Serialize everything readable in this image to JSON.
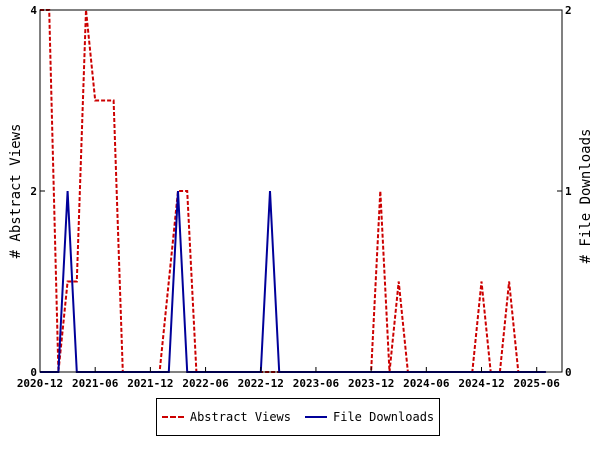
{
  "chart_data": {
    "type": "line",
    "x_ticks": [
      "2020-12",
      "2021-06",
      "2021-12",
      "2022-06",
      "2022-12",
      "2023-06",
      "2023-12",
      "2024-06",
      "2024-12",
      "2025-06"
    ],
    "xlim": [
      "2020-12",
      "2025-07"
    ],
    "ylabel_left": "# Abstract Views",
    "ylabel_right": "# File Downloads",
    "ylim_left": [
      0,
      4
    ],
    "ylim_right": [
      0,
      2
    ],
    "yticks_left": [
      "0",
      "2",
      "4"
    ],
    "yticks_right": [
      "0",
      "1",
      "2"
    ],
    "grid": false,
    "legend_position": "bottom",
    "series": [
      {
        "name": "Abstract Views",
        "axis": "left",
        "color": "#cc0000",
        "style": "dashed",
        "points": [
          [
            "2020-12",
            4
          ],
          [
            "2021-01",
            4
          ],
          [
            "2021-02",
            0
          ],
          [
            "2021-03",
            1
          ],
          [
            "2021-04",
            1
          ],
          [
            "2021-05",
            4
          ],
          [
            "2021-06",
            3
          ],
          [
            "2021-07",
            3
          ],
          [
            "2021-08",
            3
          ],
          [
            "2021-09",
            0
          ],
          [
            "2021-10",
            0
          ],
          [
            "2021-11",
            0
          ],
          [
            "2021-12",
            0
          ],
          [
            "2022-01",
            0
          ],
          [
            "2022-02",
            1
          ],
          [
            "2022-03",
            2
          ],
          [
            "2022-04",
            2
          ],
          [
            "2022-05",
            0
          ],
          [
            "2022-06",
            0
          ],
          [
            "2022-07",
            0
          ],
          [
            "2022-08",
            0
          ],
          [
            "2022-09",
            0
          ],
          [
            "2022-10",
            0
          ],
          [
            "2022-11",
            0
          ],
          [
            "2022-12",
            0
          ],
          [
            "2023-01",
            0
          ],
          [
            "2023-02",
            0
          ],
          [
            "2023-03",
            0
          ],
          [
            "2023-04",
            0
          ],
          [
            "2023-05",
            0
          ],
          [
            "2023-06",
            0
          ],
          [
            "2023-07",
            0
          ],
          [
            "2023-08",
            0
          ],
          [
            "2023-09",
            0
          ],
          [
            "2023-10",
            0
          ],
          [
            "2023-11",
            0
          ],
          [
            "2023-12",
            0
          ],
          [
            "2024-01",
            2
          ],
          [
            "2024-02",
            0
          ],
          [
            "2024-03",
            1
          ],
          [
            "2024-04",
            0
          ],
          [
            "2024-05",
            0
          ],
          [
            "2024-06",
            0
          ],
          [
            "2024-07",
            0
          ],
          [
            "2024-08",
            0
          ],
          [
            "2024-09",
            0
          ],
          [
            "2024-10",
            0
          ],
          [
            "2024-11",
            0
          ],
          [
            "2024-12",
            1
          ],
          [
            "2025-01",
            0
          ],
          [
            "2025-02",
            0
          ],
          [
            "2025-03",
            1
          ],
          [
            "2025-04",
            0
          ],
          [
            "2025-05",
            0
          ],
          [
            "2025-06",
            0
          ],
          [
            "2025-07",
            0
          ]
        ]
      },
      {
        "name": "File Downloads",
        "axis": "right",
        "color": "#000099",
        "style": "solid",
        "points": [
          [
            "2020-12",
            0
          ],
          [
            "2021-01",
            0
          ],
          [
            "2021-02",
            0
          ],
          [
            "2021-03",
            1
          ],
          [
            "2021-04",
            0
          ],
          [
            "2021-05",
            0
          ],
          [
            "2021-06",
            0
          ],
          [
            "2021-07",
            0
          ],
          [
            "2021-08",
            0
          ],
          [
            "2021-09",
            0
          ],
          [
            "2021-10",
            0
          ],
          [
            "2021-11",
            0
          ],
          [
            "2021-12",
            0
          ],
          [
            "2022-01",
            0
          ],
          [
            "2022-02",
            0
          ],
          [
            "2022-03",
            1
          ],
          [
            "2022-04",
            0
          ],
          [
            "2022-05",
            0
          ],
          [
            "2022-06",
            0
          ],
          [
            "2022-07",
            0
          ],
          [
            "2022-08",
            0
          ],
          [
            "2022-09",
            0
          ],
          [
            "2022-10",
            0
          ],
          [
            "2022-11",
            0
          ],
          [
            "2022-12",
            0
          ],
          [
            "2023-01",
            1
          ],
          [
            "2023-02",
            0
          ],
          [
            "2023-03",
            0
          ],
          [
            "2023-04",
            0
          ],
          [
            "2023-05",
            0
          ],
          [
            "2023-06",
            0
          ],
          [
            "2023-07",
            0
          ],
          [
            "2023-08",
            0
          ],
          [
            "2023-09",
            0
          ],
          [
            "2023-10",
            0
          ],
          [
            "2023-11",
            0
          ],
          [
            "2023-12",
            0
          ],
          [
            "2024-01",
            0
          ],
          [
            "2024-02",
            0
          ],
          [
            "2024-03",
            0
          ],
          [
            "2024-04",
            0
          ],
          [
            "2024-05",
            0
          ],
          [
            "2024-06",
            0
          ],
          [
            "2024-07",
            0
          ],
          [
            "2024-08",
            0
          ],
          [
            "2024-09",
            0
          ],
          [
            "2024-10",
            0
          ],
          [
            "2024-11",
            0
          ],
          [
            "2024-12",
            0
          ],
          [
            "2025-01",
            0
          ],
          [
            "2025-02",
            0
          ],
          [
            "2025-03",
            0
          ],
          [
            "2025-04",
            0
          ],
          [
            "2025-05",
            0
          ],
          [
            "2025-06",
            0
          ],
          [
            "2025-07",
            0
          ]
        ]
      }
    ]
  },
  "legend": {
    "abstract_label": "Abstract Views",
    "downloads_label": "File Downloads"
  }
}
